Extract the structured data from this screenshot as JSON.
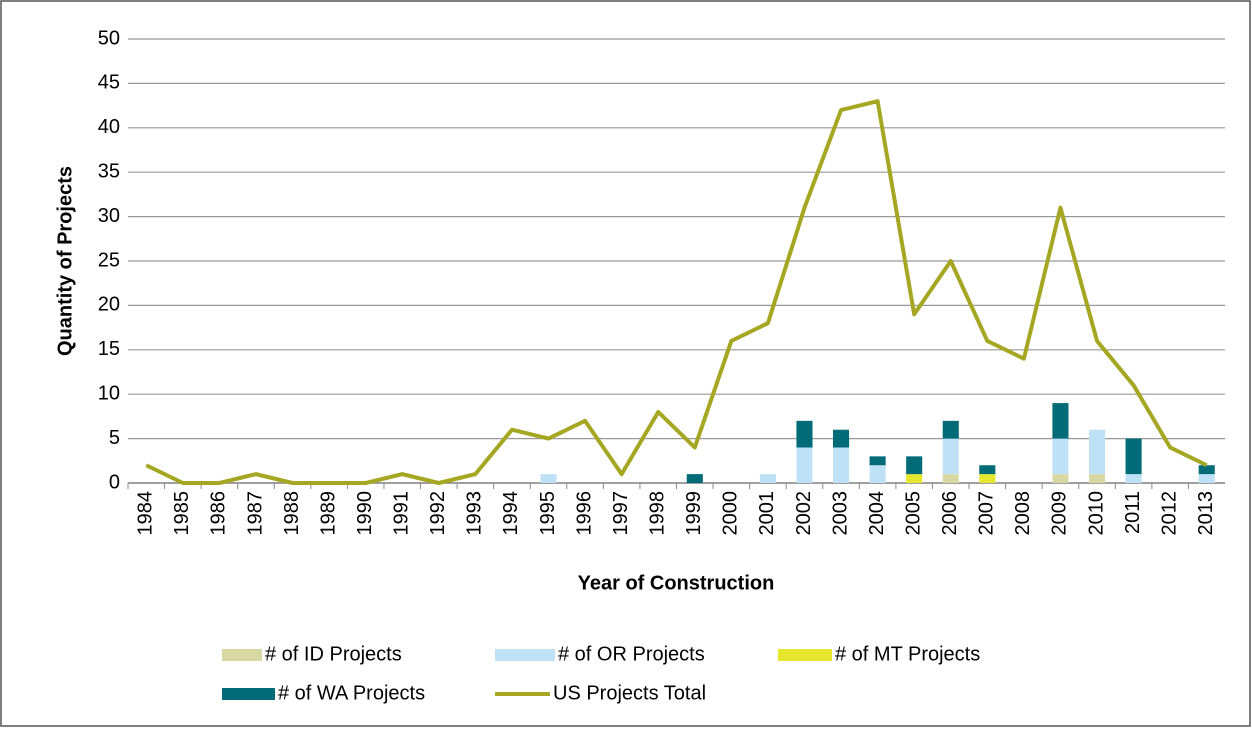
{
  "chart_data": {
    "type": "bar",
    "stacked": true,
    "x_label": "Year of Construction",
    "y_label": "Quantity of Projects",
    "categories": [
      "1984",
      "1985",
      "1986",
      "1987",
      "1988",
      "1989",
      "1990",
      "1991",
      "1992",
      "1993",
      "1994",
      "1995",
      "1996",
      "1997",
      "1998",
      "1999",
      "2000",
      "2001",
      "2002",
      "2003",
      "2004",
      "2005",
      "2006",
      "2007",
      "2008",
      "2009",
      "2010",
      "2011",
      "2012",
      "2013"
    ],
    "series": [
      {
        "name": "# of ID Projects",
        "type": "bar",
        "color": "#d8d9a2",
        "values": [
          0,
          0,
          0,
          0,
          0,
          0,
          0,
          0,
          0,
          0,
          0,
          0,
          0,
          0,
          0,
          0,
          0,
          0,
          0,
          0,
          0,
          0,
          1,
          0,
          0,
          1,
          1,
          0,
          0,
          0
        ]
      },
      {
        "name": "# of OR Projects",
        "type": "bar",
        "color": "#bfe1f5",
        "values": [
          0,
          0,
          0,
          0,
          0,
          0,
          0,
          0,
          0,
          0,
          0,
          1,
          0,
          0,
          0,
          0,
          0,
          1,
          4,
          4,
          2,
          0,
          4,
          0,
          0,
          4,
          5,
          1,
          0,
          1
        ]
      },
      {
        "name": "# of MT Projects",
        "type": "bar",
        "color": "#e6e62e",
        "values": [
          0,
          0,
          0,
          0,
          0,
          0,
          0,
          0,
          0,
          0,
          0,
          0,
          0,
          0,
          0,
          0,
          0,
          0,
          0,
          0,
          0,
          1,
          0,
          1,
          0,
          0,
          0,
          0,
          0,
          0
        ]
      },
      {
        "name": "# of WA Projects",
        "type": "bar",
        "color": "#016b78",
        "values": [
          0,
          0,
          0,
          0,
          0,
          0,
          0,
          0,
          0,
          0,
          0,
          0,
          0,
          0,
          0,
          1,
          0,
          0,
          3,
          2,
          1,
          2,
          2,
          1,
          0,
          4,
          0,
          4,
          0,
          1
        ]
      },
      {
        "name": "US Projects Total",
        "type": "line",
        "color": "#a5a622",
        "values": [
          2,
          0,
          0,
          1,
          0,
          0,
          0,
          1,
          0,
          1,
          6,
          5,
          7,
          1,
          8,
          4,
          16,
          18,
          31,
          42,
          43,
          19,
          25,
          16,
          14,
          31,
          16,
          11,
          4,
          2
        ]
      }
    ],
    "ylim": [
      0,
      50
    ],
    "yticks": [
      0,
      5,
      10,
      15,
      20,
      25,
      30,
      35,
      40,
      45,
      50
    ],
    "grid": true,
    "legend": "bottom"
  }
}
